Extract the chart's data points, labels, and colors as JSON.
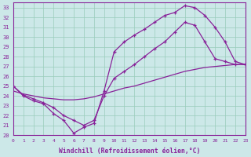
{
  "xlabel": "Windchill (Refroidissement éolien,°C)",
  "bg_color": "#cce8e8",
  "grid_color": "#99ccbb",
  "line_color": "#882299",
  "xlim": [
    0,
    23
  ],
  "ylim": [
    20,
    33.5
  ],
  "xticks": [
    0,
    1,
    2,
    3,
    4,
    5,
    6,
    7,
    8,
    9,
    10,
    11,
    12,
    13,
    14,
    15,
    16,
    17,
    18,
    19,
    20,
    21,
    22,
    23
  ],
  "yticks": [
    20,
    21,
    22,
    23,
    24,
    25,
    26,
    27,
    28,
    29,
    30,
    31,
    32,
    33
  ],
  "curve1_x": [
    0,
    1,
    2,
    3,
    4,
    5,
    6,
    7,
    8,
    9,
    10,
    11,
    12,
    13,
    14,
    15,
    16,
    17,
    18,
    19,
    20,
    21,
    22,
    23
  ],
  "curve1_y": [
    25.0,
    24.0,
    23.5,
    23.2,
    22.2,
    21.5,
    20.2,
    20.8,
    21.2,
    24.5,
    28.5,
    29.5,
    30.2,
    30.8,
    31.5,
    32.2,
    32.5,
    33.2,
    33.0,
    32.2,
    31.0,
    29.5,
    27.5,
    27.2
  ],
  "curve2_x": [
    0,
    1,
    2,
    3,
    4,
    5,
    6,
    7,
    8,
    9,
    10,
    11,
    12,
    13,
    14,
    15,
    16,
    17,
    18,
    19,
    20,
    21,
    22,
    23
  ],
  "curve2_y": [
    25.0,
    24.1,
    23.7,
    23.3,
    22.8,
    22.0,
    21.5,
    21.0,
    21.5,
    24.0,
    25.8,
    26.5,
    27.2,
    28.0,
    28.8,
    29.5,
    30.5,
    31.5,
    31.2,
    29.5,
    27.8,
    27.5,
    27.2,
    27.2
  ],
  "curve3_x": [
    0,
    1,
    2,
    3,
    4,
    5,
    6,
    7,
    8,
    9,
    10,
    11,
    12,
    13,
    14,
    15,
    16,
    17,
    18,
    19,
    20,
    21,
    22,
    23
  ],
  "curve3_y": [
    24.5,
    24.2,
    24.0,
    23.8,
    23.7,
    23.6,
    23.6,
    23.7,
    23.9,
    24.2,
    24.5,
    24.8,
    25.0,
    25.3,
    25.6,
    25.9,
    26.2,
    26.5,
    26.7,
    26.9,
    27.0,
    27.1,
    27.2,
    27.2
  ]
}
